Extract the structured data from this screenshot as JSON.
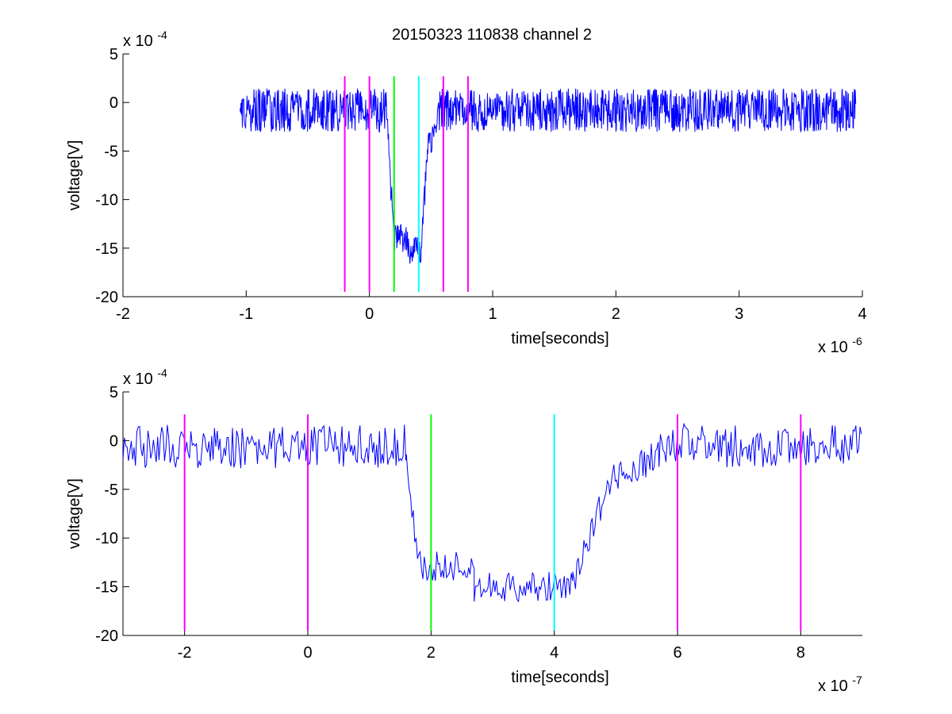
{
  "figure": {
    "title": "20150323 110838 channel 2"
  },
  "chart_data": [
    {
      "type": "line",
      "title": "20150323 110838 channel 2",
      "xlabel": "time[seconds]",
      "ylabel": "voltage[V]",
      "x_exponent_label": "x 10",
      "x_exponent": "-6",
      "y_exponent_label": "x 10",
      "y_exponent": "-4",
      "xlim": [
        -2,
        4
      ],
      "ylim": [
        -20,
        5
      ],
      "x_ticks": [
        -2,
        -1,
        0,
        1,
        2,
        3,
        4
      ],
      "y_ticks": [
        5,
        0,
        -5,
        -10,
        -15,
        -20
      ],
      "grid": false,
      "trace": {
        "color": "#0000ff",
        "segments": [
          {
            "x": [
              -1.05,
              0.14
            ],
            "level": -0.8,
            "noise": 1.4
          },
          {
            "x": [
              0.14,
              0.17
            ],
            "from": -0.8,
            "to": -8.0,
            "noise": 1.0
          },
          {
            "x": [
              0.17,
              0.2
            ],
            "from": -8.0,
            "to": -14.0,
            "noise": 1.0
          },
          {
            "x": [
              0.2,
              0.31
            ],
            "level": -14.0,
            "noise": 1.0
          },
          {
            "x": [
              0.31,
              0.42
            ],
            "level": -15.2,
            "noise": 0.9
          },
          {
            "x": [
              0.42,
              0.47
            ],
            "from": -15.2,
            "to": -5.0,
            "noise": 1.0
          },
          {
            "x": [
              0.47,
              0.56
            ],
            "from": -5.0,
            "to": -1.5,
            "noise": 1.0
          },
          {
            "x": [
              0.56,
              3.95
            ],
            "level": -0.8,
            "noise": 1.4
          }
        ]
      },
      "markers": [
        {
          "x": -0.2,
          "color": "#ff00ff"
        },
        {
          "x": 0.0,
          "color": "#ff00ff"
        },
        {
          "x": 0.2,
          "color": "#00ff00"
        },
        {
          "x": 0.4,
          "color": "#00ffff"
        },
        {
          "x": 0.6,
          "color": "#ff00ff"
        },
        {
          "x": 0.8,
          "color": "#ff00ff"
        }
      ],
      "marker_y_range": [
        -19.5,
        2.7
      ]
    },
    {
      "type": "line",
      "title": "",
      "xlabel": "time[seconds]",
      "ylabel": "voltage[V]",
      "x_exponent_label": "x 10",
      "x_exponent": "-7",
      "y_exponent_label": "x 10",
      "y_exponent": "-4",
      "xlim": [
        -3,
        9
      ],
      "ylim": [
        -20,
        5
      ],
      "x_ticks": [
        -2,
        0,
        2,
        4,
        6,
        8
      ],
      "y_ticks": [
        5,
        0,
        -5,
        -10,
        -15,
        -20
      ],
      "grid": false,
      "trace": {
        "color": "#0000ff",
        "segments": [
          {
            "x": [
              -3.0,
              1.6
            ],
            "level": -0.6,
            "noise": 1.4
          },
          {
            "x": [
              1.6,
              1.8
            ],
            "from": -1.0,
            "to": -14.0,
            "noise": 0.8
          },
          {
            "x": [
              1.8,
              2.7
            ],
            "level": -13.0,
            "noise": 1.0
          },
          {
            "x": [
              2.7,
              4.3
            ],
            "level": -15.0,
            "noise": 1.0
          },
          {
            "x": [
              4.3,
              4.9
            ],
            "from": -15.0,
            "to": -4.0,
            "noise": 1.0
          },
          {
            "x": [
              4.9,
              5.7
            ],
            "from": -4.0,
            "to": -1.5,
            "noise": 1.0
          },
          {
            "x": [
              5.7,
              9.0
            ],
            "level": -0.5,
            "noise": 1.4
          }
        ]
      },
      "markers": [
        {
          "x": -2,
          "color": "#ff00ff"
        },
        {
          "x": 0,
          "color": "#ff00ff"
        },
        {
          "x": 2,
          "color": "#00ff00"
        },
        {
          "x": 4,
          "color": "#00ffff"
        },
        {
          "x": 6,
          "color": "#ff00ff"
        },
        {
          "x": 8,
          "color": "#ff00ff"
        }
      ],
      "marker_y_range": [
        -19.5,
        2.7
      ]
    }
  ]
}
